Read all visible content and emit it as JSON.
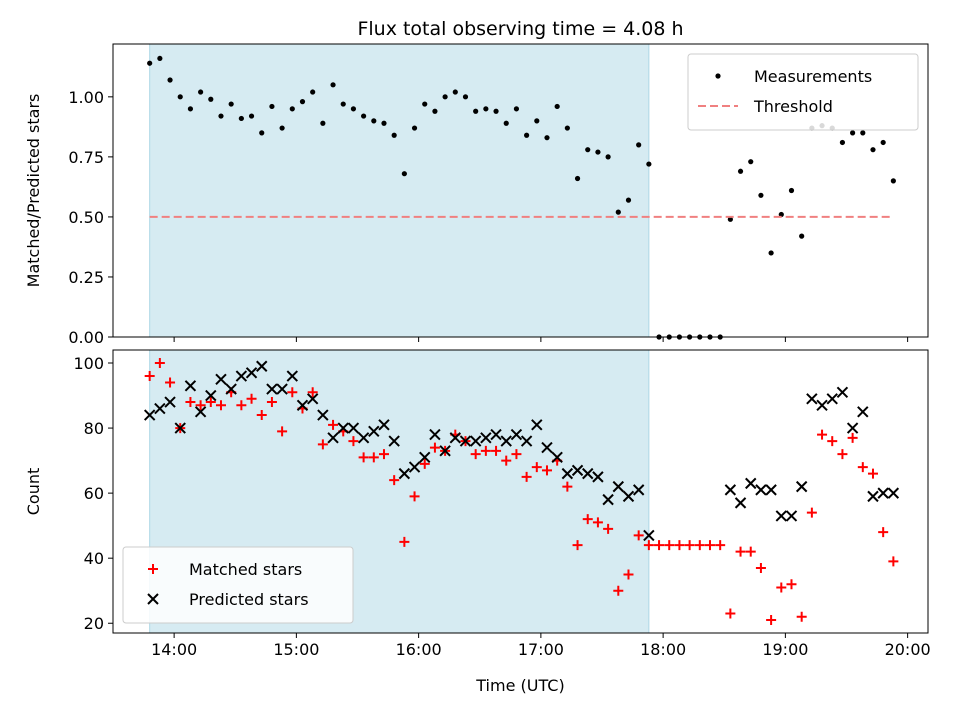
{
  "chart_data": [
    {
      "type": "scatter",
      "title": "Flux total observing time = 4.08 h",
      "xlabel": "",
      "ylabel": "Matched/Predicted stars",
      "xlim": [
        "13:30",
        "20:10"
      ],
      "ylim": [
        0,
        1.22
      ],
      "xticks": [
        "14:00",
        "15:00",
        "16:00",
        "17:00",
        "18:00",
        "19:00",
        "20:00"
      ],
      "yticks": [
        "0.00",
        "0.25",
        "0.50",
        "0.75",
        "1.00"
      ],
      "shaded_interval": [
        "13:48",
        "17:53"
      ],
      "shade_color": "#add8e6",
      "legend_position": "upper right",
      "series": [
        {
          "name": "Measurements",
          "marker": "dot",
          "color": "#000000",
          "x": [
            "13:48",
            "13:53",
            "13:58",
            "14:03",
            "14:08",
            "14:13",
            "14:18",
            "14:23",
            "14:28",
            "14:33",
            "14:38",
            "14:43",
            "14:48",
            "14:53",
            "14:58",
            "15:03",
            "15:08",
            "15:13",
            "15:18",
            "15:23",
            "15:28",
            "15:33",
            "15:38",
            "15:43",
            "15:48",
            "15:53",
            "15:58",
            "16:03",
            "16:08",
            "16:13",
            "16:18",
            "16:23",
            "16:28",
            "16:33",
            "16:38",
            "16:43",
            "16:48",
            "16:53",
            "16:58",
            "17:03",
            "17:08",
            "17:13",
            "17:18",
            "17:23",
            "17:28",
            "17:33",
            "17:38",
            "17:43",
            "17:48",
            "17:53",
            "17:58",
            "18:03",
            "18:08",
            "18:13",
            "18:18",
            "18:23",
            "18:28",
            "18:33",
            "18:38",
            "18:43",
            "18:48",
            "18:53",
            "18:58",
            "19:03",
            "19:08",
            "19:13",
            "19:18",
            "19:23",
            "19:28",
            "19:33",
            "19:38",
            "19:43",
            "19:48",
            "19:53"
          ],
          "y": [
            1.14,
            1.16,
            1.07,
            1.0,
            0.95,
            1.02,
            0.99,
            0.92,
            0.97,
            0.91,
            0.92,
            0.85,
            0.96,
            0.87,
            0.95,
            0.98,
            1.02,
            0.89,
            1.05,
            0.97,
            0.95,
            0.92,
            0.9,
            0.89,
            0.84,
            0.68,
            0.87,
            0.97,
            0.94,
            1.0,
            1.02,
            1.0,
            0.94,
            0.95,
            0.94,
            0.89,
            0.95,
            0.84,
            0.9,
            0.83,
            0.96,
            0.87,
            0.66,
            0.78,
            0.77,
            0.75,
            0.52,
            0.57,
            0.8,
            0.72,
            0.0,
            0.0,
            0.0,
            0.0,
            0.0,
            0.0,
            0.0,
            0.49,
            0.69,
            0.73,
            0.59,
            0.35,
            0.51,
            0.61,
            0.42,
            0.87,
            0.88,
            0.87,
            0.81,
            0.85,
            0.85,
            0.78,
            0.81,
            0.65
          ]
        },
        {
          "name": "Threshold",
          "marker": "dashed-line",
          "color": "#f08080",
          "x": [
            "13:48",
            "19:53"
          ],
          "y": [
            0.5,
            0.5
          ]
        }
      ]
    },
    {
      "type": "scatter",
      "title": "",
      "xlabel": "Time (UTC)",
      "ylabel": "Count",
      "xlim": [
        "13:30",
        "20:10"
      ],
      "ylim": [
        17,
        104
      ],
      "xticks": [
        "14:00",
        "15:00",
        "16:00",
        "17:00",
        "18:00",
        "19:00",
        "20:00"
      ],
      "yticks": [
        "20",
        "40",
        "60",
        "80",
        "100"
      ],
      "shaded_interval": [
        "13:48",
        "17:53"
      ],
      "shade_color": "#add8e6",
      "legend_position": "lower left",
      "series": [
        {
          "name": "Matched stars",
          "marker": "plus",
          "color": "#ff0000",
          "x": [
            "13:48",
            "13:53",
            "13:58",
            "14:03",
            "14:08",
            "14:13",
            "14:18",
            "14:23",
            "14:28",
            "14:33",
            "14:38",
            "14:43",
            "14:48",
            "14:53",
            "14:58",
            "15:03",
            "15:08",
            "15:13",
            "15:18",
            "15:23",
            "15:28",
            "15:33",
            "15:38",
            "15:43",
            "15:48",
            "15:53",
            "15:58",
            "16:03",
            "16:08",
            "16:13",
            "16:18",
            "16:23",
            "16:28",
            "16:33",
            "16:38",
            "16:43",
            "16:48",
            "16:53",
            "16:58",
            "17:03",
            "17:08",
            "17:13",
            "17:18",
            "17:23",
            "17:28",
            "17:33",
            "17:38",
            "17:43",
            "17:48",
            "17:53",
            "17:58",
            "18:03",
            "18:08",
            "18:13",
            "18:18",
            "18:23",
            "18:28",
            "18:33",
            "18:38",
            "18:43",
            "18:48",
            "18:53",
            "18:58",
            "19:03",
            "19:08",
            "19:13",
            "19:18",
            "19:23",
            "19:28",
            "19:33",
            "19:38",
            "19:43",
            "19:48",
            "19:53"
          ],
          "y": [
            96,
            100,
            94,
            80,
            88,
            87,
            88,
            87,
            91,
            87,
            89,
            84,
            88,
            79,
            91,
            86,
            91,
            75,
            81,
            79,
            76,
            71,
            71,
            72,
            64,
            45,
            59,
            69,
            74,
            73,
            78,
            76,
            72,
            73,
            73,
            70,
            72,
            65,
            68,
            67,
            70,
            62,
            44,
            52,
            51,
            49,
            30,
            35,
            47,
            44,
            44,
            44,
            44,
            44,
            44,
            44,
            44,
            23,
            42,
            42,
            37,
            21,
            31,
            32,
            22,
            54,
            78,
            76,
            72,
            77,
            68,
            66,
            48,
            39
          ]
        },
        {
          "name": "Predicted stars",
          "marker": "x",
          "color": "#000000",
          "x": [
            "13:48",
            "13:53",
            "13:58",
            "14:03",
            "14:08",
            "14:13",
            "14:18",
            "14:23",
            "14:28",
            "14:33",
            "14:38",
            "14:43",
            "14:48",
            "14:53",
            "14:58",
            "15:03",
            "15:08",
            "15:13",
            "15:18",
            "15:23",
            "15:28",
            "15:33",
            "15:38",
            "15:43",
            "15:48",
            "15:53",
            "15:58",
            "16:03",
            "16:08",
            "16:13",
            "16:18",
            "16:23",
            "16:28",
            "16:33",
            "16:38",
            "16:43",
            "16:48",
            "16:53",
            "16:58",
            "17:03",
            "17:08",
            "17:13",
            "17:18",
            "17:23",
            "17:28",
            "17:33",
            "17:38",
            "17:43",
            "17:48",
            "17:53",
            "18:33",
            "18:38",
            "18:43",
            "18:48",
            "18:53",
            "18:58",
            "19:03",
            "19:08",
            "19:13",
            "19:18",
            "19:23",
            "19:28",
            "19:33",
            "19:38",
            "19:43",
            "19:48",
            "19:53"
          ],
          "y": [
            84,
            86,
            88,
            80,
            93,
            85,
            90,
            95,
            92,
            96,
            97,
            99,
            92,
            92,
            96,
            87,
            89,
            84,
            77,
            80,
            80,
            77,
            79,
            81,
            76,
            66,
            68,
            71,
            78,
            73,
            77,
            76,
            76,
            77,
            78,
            76,
            78,
            76,
            81,
            74,
            71,
            66,
            67,
            66,
            65,
            58,
            62,
            59,
            61,
            47,
            61,
            57,
            63,
            61,
            61,
            53,
            53,
            62,
            89,
            87,
            89,
            91,
            80,
            85,
            59,
            60,
            60
          ]
        }
      ]
    }
  ]
}
